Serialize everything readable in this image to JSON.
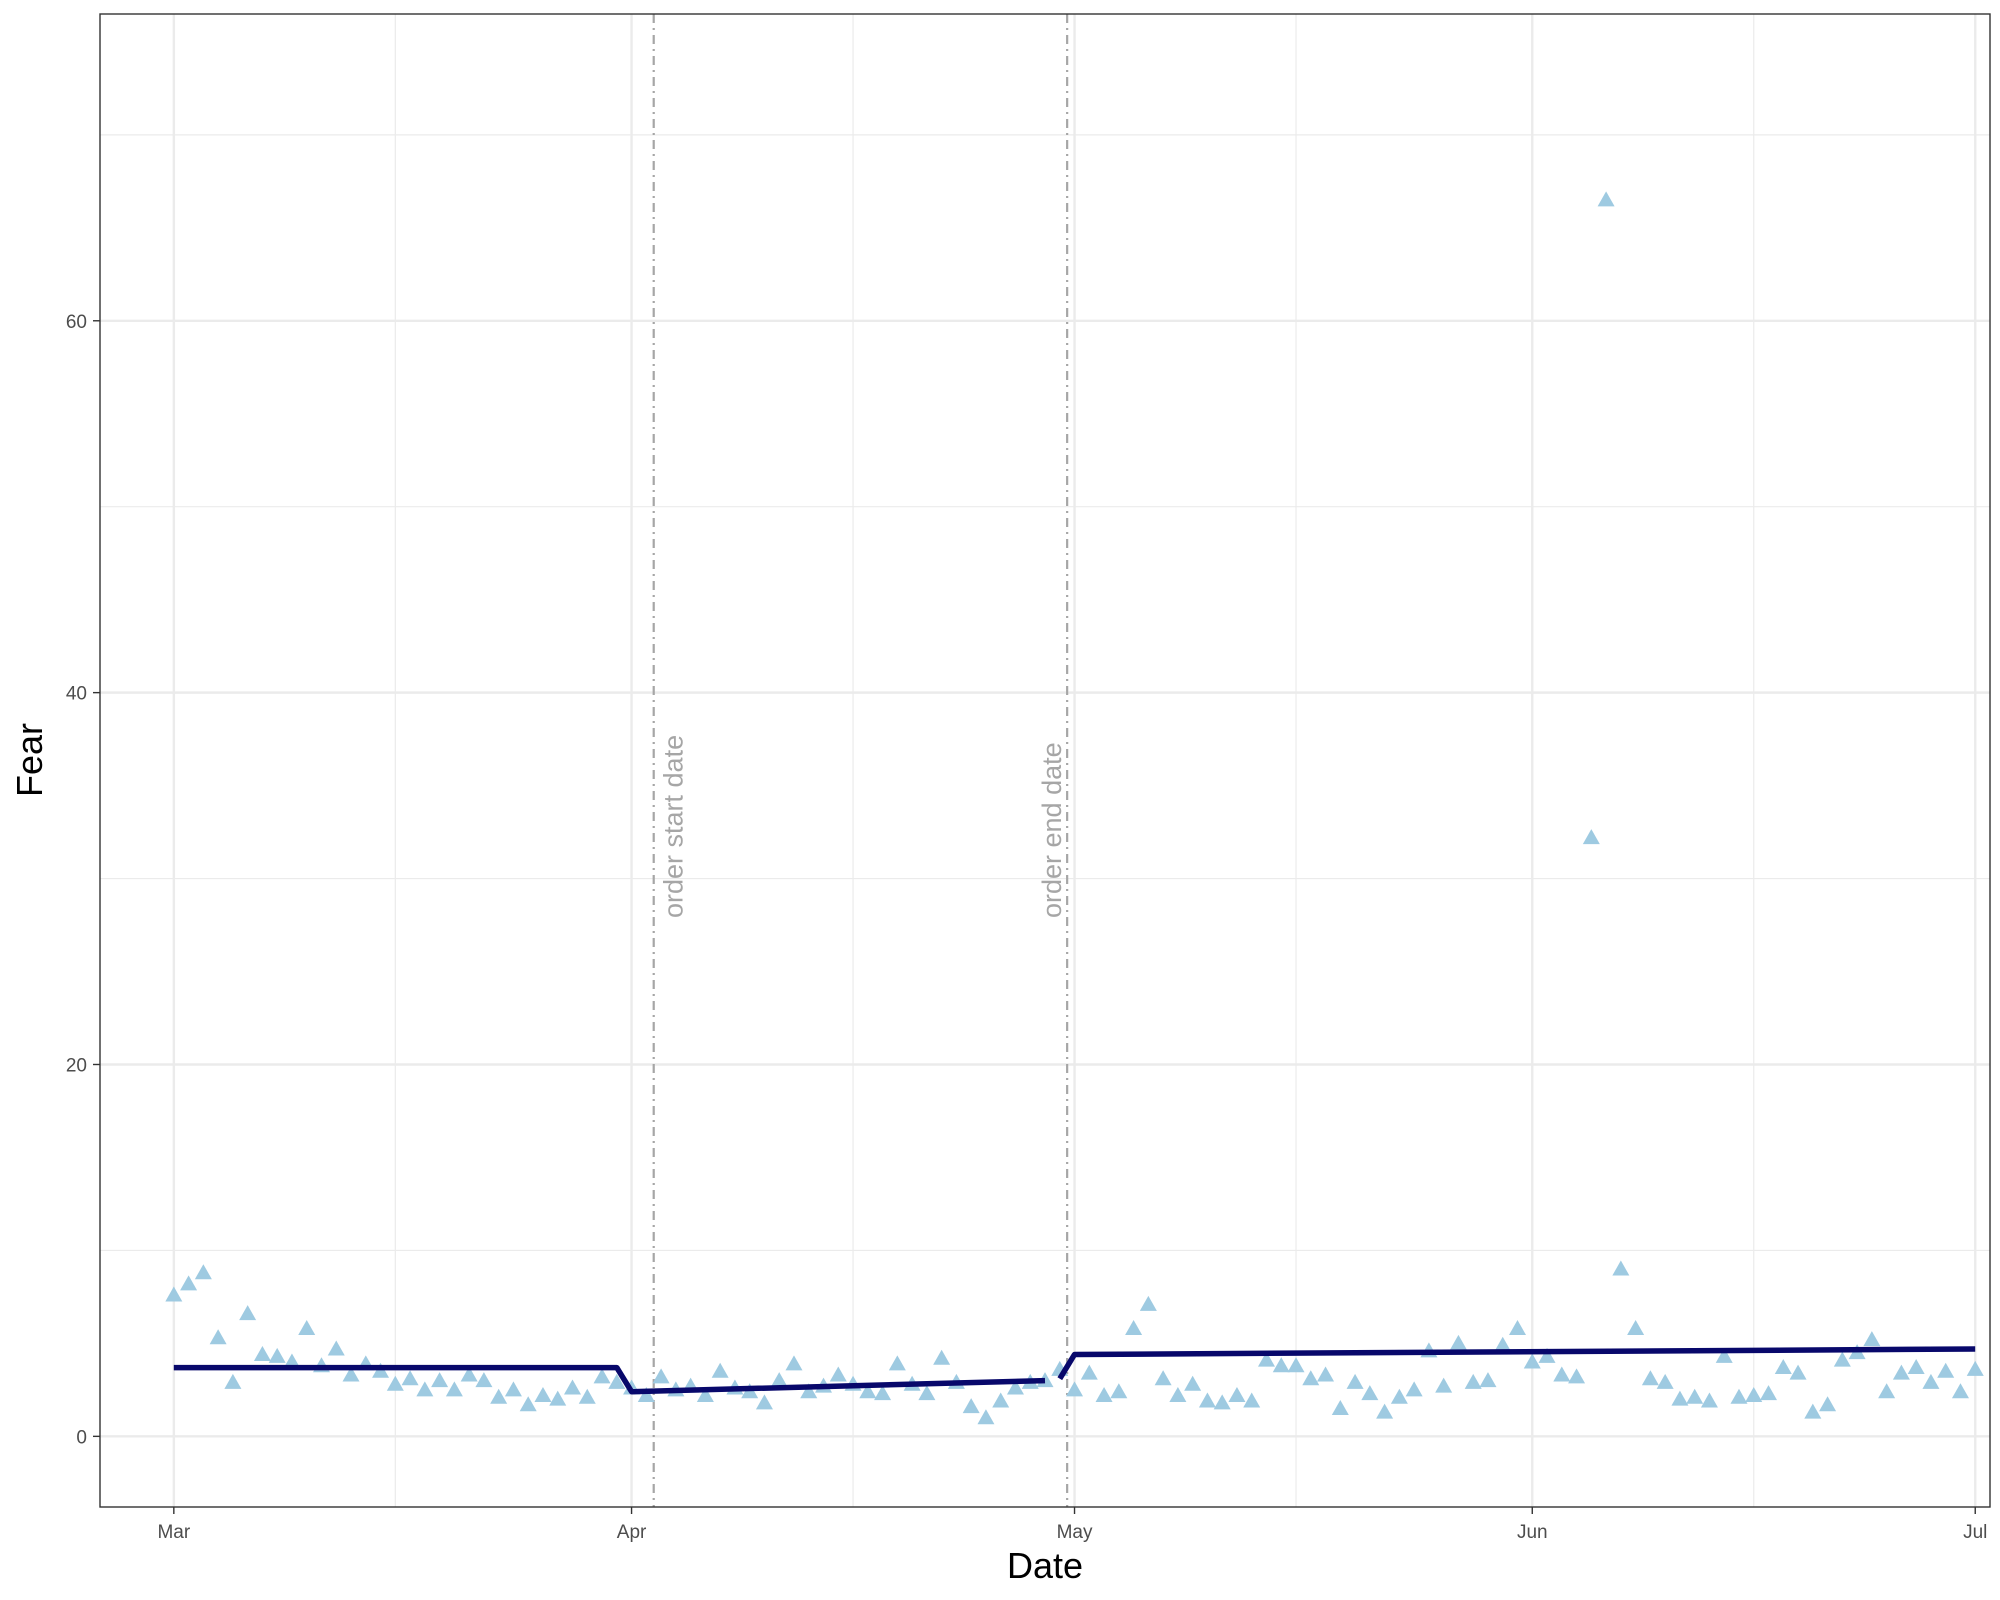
{
  "chart_data": {
    "type": "scatter",
    "xlabel": "Date",
    "ylabel": "Fear",
    "xlim": [
      "2020-02-25",
      "2020-07-02"
    ],
    "ylim": [
      -3.8,
      76.5
    ],
    "x_ticks": [
      {
        "date": "2020-03-01",
        "label": "Mar"
      },
      {
        "date": "2020-04-01",
        "label": "Apr"
      },
      {
        "date": "2020-05-01",
        "label": "May"
      },
      {
        "date": "2020-06-01",
        "label": "Jun"
      },
      {
        "date": "2020-07-01",
        "label": "Jul"
      }
    ],
    "x_minor_ticks": [
      "2020-03-16",
      "2020-04-16",
      "2020-05-16",
      "2020-06-16"
    ],
    "y_ticks": [
      0,
      20,
      40,
      60
    ],
    "y_minor_ticks": [
      10,
      30,
      50,
      70
    ],
    "grid": true,
    "colors": {
      "points": "#9ecae1",
      "fit_line": "#08086b",
      "annotation": "#a6a6a6",
      "grid": "#ebebeb"
    },
    "point_shape": "triangle",
    "vlines": [
      {
        "date": "2020-04-02",
        "label": "order start date",
        "style": "dotdash"
      },
      {
        "date": "2020-04-30",
        "label": "order end date",
        "style": "dotdash"
      }
    ],
    "points": [
      [
        "2020-03-01",
        7.6
      ],
      [
        "2020-03-02",
        8.2
      ],
      [
        "2020-03-03",
        8.8
      ],
      [
        "2020-03-04",
        5.3
      ],
      [
        "2020-03-05",
        2.9
      ],
      [
        "2020-03-06",
        6.6
      ],
      [
        "2020-03-07",
        4.4
      ],
      [
        "2020-03-08",
        4.3
      ],
      [
        "2020-03-09",
        4.0
      ],
      [
        "2020-03-10",
        5.8
      ],
      [
        "2020-03-11",
        3.8
      ],
      [
        "2020-03-12",
        4.7
      ],
      [
        "2020-03-13",
        3.3
      ],
      [
        "2020-03-14",
        3.9
      ],
      [
        "2020-03-15",
        3.5
      ],
      [
        "2020-03-16",
        2.8
      ],
      [
        "2020-03-17",
        3.1
      ],
      [
        "2020-03-18",
        2.5
      ],
      [
        "2020-03-19",
        3.0
      ],
      [
        "2020-03-20",
        2.5
      ],
      [
        "2020-03-21",
        3.3
      ],
      [
        "2020-03-22",
        3.0
      ],
      [
        "2020-03-23",
        2.1
      ],
      [
        "2020-03-24",
        2.5
      ],
      [
        "2020-03-25",
        1.7
      ],
      [
        "2020-03-26",
        2.2
      ],
      [
        "2020-03-27",
        2.0
      ],
      [
        "2020-03-28",
        2.6
      ],
      [
        "2020-03-29",
        2.1
      ],
      [
        "2020-03-30",
        3.2
      ],
      [
        "2020-03-31",
        2.9
      ],
      [
        "2020-04-01",
        2.6
      ],
      [
        "2020-04-02",
        2.2
      ],
      [
        "2020-04-03",
        3.2
      ],
      [
        "2020-04-04",
        2.5
      ],
      [
        "2020-04-05",
        2.7
      ],
      [
        "2020-04-06",
        2.2
      ],
      [
        "2020-04-07",
        3.5
      ],
      [
        "2020-04-08",
        2.6
      ],
      [
        "2020-04-09",
        2.4
      ],
      [
        "2020-04-10",
        1.8
      ],
      [
        "2020-04-11",
        3.0
      ],
      [
        "2020-04-12",
        3.9
      ],
      [
        "2020-04-13",
        2.4
      ],
      [
        "2020-04-14",
        2.7
      ],
      [
        "2020-04-15",
        3.3
      ],
      [
        "2020-04-16",
        2.8
      ],
      [
        "2020-04-17",
        2.4
      ],
      [
        "2020-04-18",
        2.3
      ],
      [
        "2020-04-19",
        3.9
      ],
      [
        "2020-04-20",
        2.8
      ],
      [
        "2020-04-21",
        2.3
      ],
      [
        "2020-04-22",
        4.2
      ],
      [
        "2020-04-23",
        2.9
      ],
      [
        "2020-04-24",
        1.6
      ],
      [
        "2020-04-25",
        1.0
      ],
      [
        "2020-04-26",
        1.9
      ],
      [
        "2020-04-27",
        2.6
      ],
      [
        "2020-04-28",
        2.9
      ],
      [
        "2020-04-29",
        3.0
      ],
      [
        "2020-04-30",
        3.6
      ],
      [
        "2020-05-01",
        2.5
      ],
      [
        "2020-05-02",
        3.4
      ],
      [
        "2020-05-03",
        2.2
      ],
      [
        "2020-05-04",
        2.4
      ],
      [
        "2020-05-05",
        5.8
      ],
      [
        "2020-05-06",
        7.1
      ],
      [
        "2020-05-07",
        3.1
      ],
      [
        "2020-05-08",
        2.2
      ],
      [
        "2020-05-09",
        2.8
      ],
      [
        "2020-05-10",
        1.9
      ],
      [
        "2020-05-11",
        1.8
      ],
      [
        "2020-05-12",
        2.2
      ],
      [
        "2020-05-13",
        1.9
      ],
      [
        "2020-05-14",
        4.1
      ],
      [
        "2020-05-15",
        3.8
      ],
      [
        "2020-05-16",
        3.8
      ],
      [
        "2020-05-17",
        3.1
      ],
      [
        "2020-05-18",
        3.3
      ],
      [
        "2020-05-19",
        1.5
      ],
      [
        "2020-05-20",
        2.9
      ],
      [
        "2020-05-21",
        2.3
      ],
      [
        "2020-05-22",
        1.3
      ],
      [
        "2020-05-23",
        2.1
      ],
      [
        "2020-05-24",
        2.5
      ],
      [
        "2020-05-25",
        4.6
      ],
      [
        "2020-05-26",
        2.7
      ],
      [
        "2020-05-27",
        5.0
      ],
      [
        "2020-05-28",
        2.9
      ],
      [
        "2020-05-29",
        3.0
      ],
      [
        "2020-05-30",
        4.9
      ],
      [
        "2020-05-31",
        5.8
      ],
      [
        "2020-06-01",
        4.0
      ],
      [
        "2020-06-02",
        4.3
      ],
      [
        "2020-06-03",
        3.3
      ],
      [
        "2020-06-04",
        3.2
      ],
      [
        "2020-06-05",
        32.2
      ],
      [
        "2020-06-06",
        66.5
      ],
      [
        "2020-06-07",
        9.0
      ],
      [
        "2020-06-08",
        5.8
      ],
      [
        "2020-06-09",
        3.1
      ],
      [
        "2020-06-10",
        2.9
      ],
      [
        "2020-06-11",
        2.0
      ],
      [
        "2020-06-12",
        2.1
      ],
      [
        "2020-06-13",
        1.9
      ],
      [
        "2020-06-14",
        4.3
      ],
      [
        "2020-06-15",
        2.1
      ],
      [
        "2020-06-16",
        2.2
      ],
      [
        "2020-06-17",
        2.3
      ],
      [
        "2020-06-18",
        3.7
      ],
      [
        "2020-06-19",
        3.4
      ],
      [
        "2020-06-20",
        1.3
      ],
      [
        "2020-06-21",
        1.7
      ],
      [
        "2020-06-22",
        4.1
      ],
      [
        "2020-06-23",
        4.5
      ],
      [
        "2020-06-24",
        5.2
      ],
      [
        "2020-06-25",
        2.4
      ],
      [
        "2020-06-26",
        3.4
      ],
      [
        "2020-06-27",
        3.7
      ],
      [
        "2020-06-28",
        2.9
      ],
      [
        "2020-06-29",
        3.5
      ],
      [
        "2020-06-30",
        2.4
      ],
      [
        "2020-07-01",
        3.6
      ]
    ],
    "fit_segments": [
      [
        [
          "2020-03-01",
          3.7
        ],
        [
          "2020-03-31",
          3.7
        ],
        [
          "2020-04-01",
          2.4
        ],
        [
          "2020-04-29",
          3.0
        ]
      ],
      [
        [
          "2020-04-30",
          3.1
        ],
        [
          "2020-05-01",
          4.4
        ],
        [
          "2020-07-01",
          4.7
        ]
      ]
    ]
  }
}
